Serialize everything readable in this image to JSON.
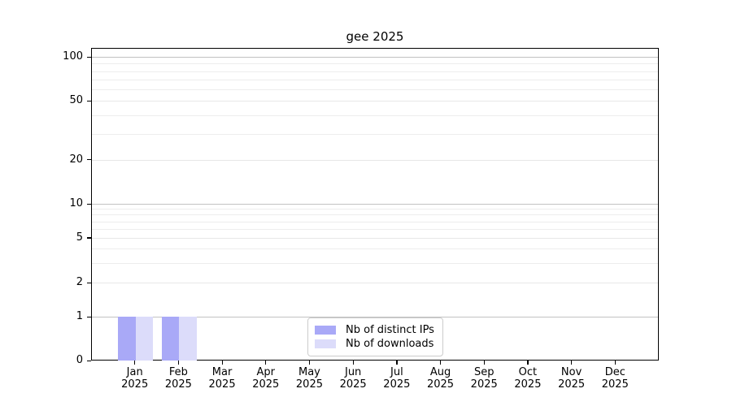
{
  "title": "gee 2025",
  "chart_data": {
    "type": "bar",
    "title": "gee 2025",
    "xlabel": "",
    "ylabel": "",
    "yscale": "log-like (0, then log decades 1-10-100)",
    "ylim": [
      0,
      100
    ],
    "grid": "horizontal, minor log gridlines on",
    "legend_position": "bottom center, inside plot",
    "categories": [
      {
        "month": "Jan",
        "year": "2025"
      },
      {
        "month": "Feb",
        "year": "2025"
      },
      {
        "month": "Mar",
        "year": "2025"
      },
      {
        "month": "Apr",
        "year": "2025"
      },
      {
        "month": "May",
        "year": "2025"
      },
      {
        "month": "Jun",
        "year": "2025"
      },
      {
        "month": "Jul",
        "year": "2025"
      },
      {
        "month": "Aug",
        "year": "2025"
      },
      {
        "month": "Sep",
        "year": "2025"
      },
      {
        "month": "Oct",
        "year": "2025"
      },
      {
        "month": "Nov",
        "year": "2025"
      },
      {
        "month": "Dec",
        "year": "2025"
      }
    ],
    "series": [
      {
        "name": "Nb of distinct IPs",
        "color": "#a9a9f7",
        "values": [
          1,
          1,
          0,
          0,
          0,
          0,
          0,
          0,
          0,
          0,
          0,
          0
        ]
      },
      {
        "name": "Nb of downloads",
        "color": "#dcdcfa",
        "values": [
          1,
          1,
          0,
          0,
          0,
          0,
          0,
          0,
          0,
          0,
          0,
          0
        ]
      }
    ],
    "y_ticks_labeled": [
      0,
      1,
      2,
      5,
      10,
      20,
      50,
      100
    ],
    "y_grid_major": [
      1,
      10,
      100
    ],
    "y_grid_minor": [
      2,
      3,
      4,
      5,
      6,
      7,
      8,
      9,
      20,
      30,
      40,
      50,
      60,
      70,
      80,
      90
    ]
  },
  "colors": {
    "distinct_ips_bar": "#a9a9f7",
    "downloads_bar": "#dcdcfa",
    "grid_major": "#c2c2c2",
    "grid_minor": "#ededed",
    "axis": "#000000"
  }
}
